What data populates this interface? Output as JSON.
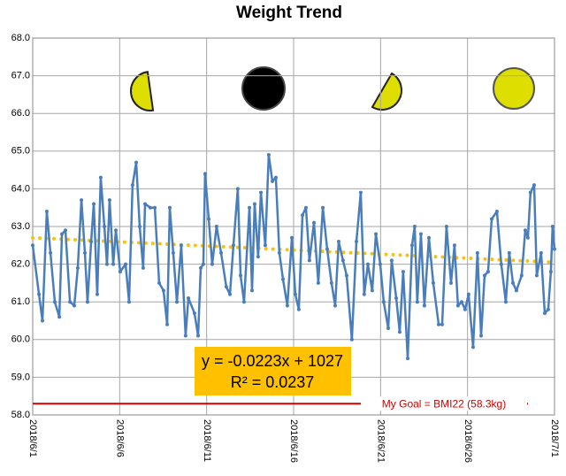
{
  "chart_data": {
    "type": "line",
    "title": "Weight Trend",
    "xlim": [
      43252,
      43282
    ],
    "xticks": [
      {
        "value": 43252,
        "label": "2018/6/1"
      },
      {
        "value": 43257,
        "label": "2018/6/6"
      },
      {
        "value": 43262,
        "label": "2018/6/11"
      },
      {
        "value": 43267,
        "label": "2018/6/16"
      },
      {
        "value": 43272,
        "label": "2018/6/21"
      },
      {
        "value": 43277,
        "label": "2018/6/26"
      },
      {
        "value": 43282,
        "label": "2018/7/1"
      }
    ],
    "ylim": [
      58,
      68
    ],
    "yticks": [
      {
        "value": 58,
        "label": "58.0"
      },
      {
        "value": 59,
        "label": "59.0"
      },
      {
        "value": 60,
        "label": "60.0"
      },
      {
        "value": 61,
        "label": "61.0"
      },
      {
        "value": 62,
        "label": "62.0"
      },
      {
        "value": 63,
        "label": "63.0"
      },
      {
        "value": 64,
        "label": "64.0"
      },
      {
        "value": 65,
        "label": "65.0"
      },
      {
        "value": 66,
        "label": "66.0"
      },
      {
        "value": 67,
        "label": "67.0"
      },
      {
        "value": 68,
        "label": "68.0"
      }
    ],
    "grid": true,
    "series": [
      {
        "color": "#4a7ebb",
        "x": [
          43252,
          43252.36,
          43252.56,
          43252.81,
          43253.02,
          43253.27,
          43253.53,
          43253.68,
          43253.88,
          43254.14,
          43254.39,
          43254.59,
          43254.8,
          43255,
          43255.15,
          43255.36,
          43255.51,
          43255.71,
          43255.91,
          43256.12,
          43256.27,
          43256.42,
          43256.63,
          43256.78,
          43257.03,
          43257.34,
          43257.54,
          43257.74,
          43257.95,
          43258.15,
          43258.35,
          43258.46,
          43258.76,
          43259.02,
          43259.27,
          43259.52,
          43259.73,
          43259.88,
          43260.08,
          43260.29,
          43260.54,
          43260.79,
          43260.95,
          43261.3,
          43261.51,
          43261.66,
          43261.81,
          43261.91,
          43262.12,
          43262.32,
          43262.57,
          43262.83,
          43263.13,
          43263.34,
          43263.54,
          43263.79,
          43263.95,
          43264.15,
          43264.46,
          43264.61,
          43264.76,
          43264.96,
          43265.12,
          43265.37,
          43265.57,
          43265.78,
          43265.98,
          43266.18,
          43266.39,
          43266.64,
          43266.9,
          43267.1,
          43267.3,
          43267.51,
          43267.71,
          43267.91,
          43268.17,
          43268.42,
          43268.68,
          43268.93,
          43269.18,
          43269.39,
          43269.59,
          43269.84,
          43270.05,
          43270.35,
          43270.61,
          43270.86,
          43271.06,
          43271.27,
          43271.52,
          43271.73,
          43271.98,
          43272.18,
          43272.44,
          43272.64,
          43272.9,
          43273.1,
          43273.3,
          43273.56,
          43273.81,
          43273.96,
          43274.11,
          43274.32,
          43274.52,
          43274.78,
          43275.03,
          43275.34,
          43275.54,
          43275.79,
          43276.05,
          43276.25,
          43276.45,
          43276.66,
          43276.86,
          43277.06,
          43277.32,
          43277.57,
          43277.78,
          43277.98,
          43278.18,
          43278.39,
          43278.69,
          43278.94,
          43279.2,
          43279.4,
          43279.61,
          43279.81,
          43280.11,
          43280.32,
          43280.47,
          43280.62,
          43280.83,
          43280.98,
          43281.23,
          43281.44,
          43281.64,
          43281.79,
          43281.89,
          43282
        ],
        "values": [
          62.5,
          61.2,
          60.5,
          63.4,
          62.3,
          61.0,
          60.6,
          62.8,
          62.9,
          61.0,
          60.9,
          61.9,
          63.7,
          62.3,
          61.0,
          62.6,
          63.6,
          61.2,
          64.3,
          63.0,
          62.0,
          63.7,
          62.0,
          62.9,
          61.8,
          62.0,
          61.0,
          64.1,
          64.7,
          63.0,
          61.9,
          63.6,
          63.5,
          63.5,
          61.5,
          61.3,
          60.4,
          63.5,
          62.3,
          61.0,
          62.5,
          60.1,
          61.1,
          60.7,
          60.1,
          61.9,
          62.0,
          64.4,
          63.2,
          62.0,
          63.0,
          62.3,
          61.4,
          61.2,
          62.5,
          64.0,
          61.7,
          61.0,
          63.5,
          61.3,
          63.6,
          62.2,
          63.9,
          62.5,
          64.9,
          64.2,
          64.3,
          62.3,
          61.6,
          60.9,
          62.7,
          61.2,
          60.8,
          63.3,
          63.5,
          62.1,
          63.1,
          61.5,
          63.5,
          62.4,
          61.5,
          60.9,
          62.6,
          62.1,
          61.7,
          60.0,
          62.6,
          63.9,
          61.2,
          62.0,
          61.3,
          62.8,
          62.0,
          61.0,
          60.3,
          62.1,
          61.1,
          60.2,
          61.8,
          59.5,
          62.5,
          63.0,
          61.0,
          62.8,
          60.9,
          62.7,
          61.5,
          60.4,
          60.4,
          63.0,
          61.5,
          62.5,
          60.9,
          61.0,
          60.8,
          61.2,
          59.8,
          62.3,
          60.1,
          61.7,
          61.8,
          63.2,
          63.4,
          62.0,
          61.0,
          62.3,
          61.5,
          61.3,
          61.7,
          62.9,
          62.7,
          63.9,
          64.1,
          61.7,
          62.3,
          60.7,
          60.8,
          61.8,
          63.0,
          62.4
        ]
      },
      {
        "color": "#ffc000",
        "x": [
          43252,
          43282
        ],
        "values": [
          62.7,
          62.05
        ]
      }
    ],
    "annotations": [
      "y = -0.0223x + 1027",
      "R² = 0.0237"
    ],
    "goal": {
      "value": 58.3,
      "label": "My Goal = BMI22 (58.3kg)",
      "color": "#d00000"
    }
  }
}
